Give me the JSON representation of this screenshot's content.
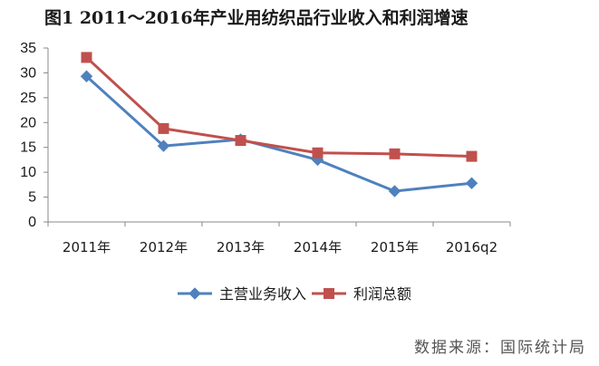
{
  "title": "图1 2011～2016年产业用纺织品行业收入和利润增速",
  "source": "数据来源：国际统计局",
  "colors": {
    "revenue": "#4f81bd",
    "profit": "#c0504d",
    "axis": "#888888"
  },
  "chart_data": {
    "type": "line",
    "title": "图1 2011～2016年产业用纺织品行业收入和利润增速",
    "categories": [
      "2011年",
      "2012年",
      "2013年",
      "2014年",
      "2015年",
      "2016q2"
    ],
    "series": [
      {
        "name": "主营业务收入",
        "values": [
          29.3,
          15.3,
          16.6,
          12.5,
          6.2,
          7.8
        ],
        "marker": "diamond",
        "color": "#4f81bd"
      },
      {
        "name": "利润总额",
        "values": [
          33.1,
          18.8,
          16.4,
          13.9,
          13.7,
          13.2
        ],
        "marker": "square",
        "color": "#c0504d"
      }
    ],
    "ylim": [
      0,
      35
    ],
    "yticks": [
      "0",
      "5",
      "10",
      "15",
      "20",
      "25",
      "30",
      "35"
    ],
    "xlabel": "",
    "ylabel": "",
    "grid": false,
    "legend": "bottom"
  }
}
